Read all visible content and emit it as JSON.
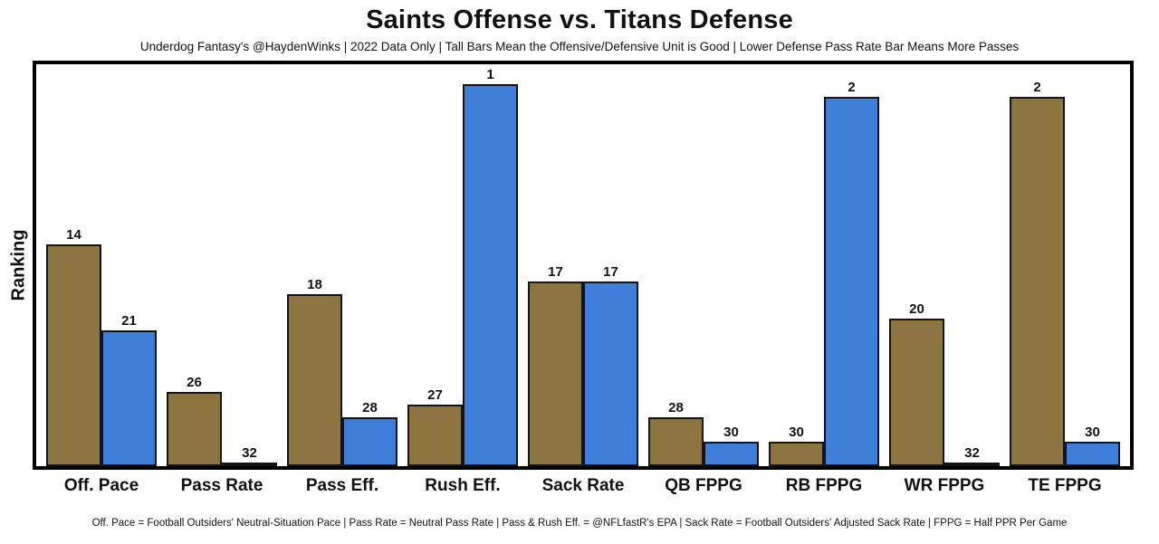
{
  "chart_data": {
    "type": "bar",
    "title": "Saints Offense vs. Titans Defense",
    "subtitle": "Underdog Fantasy's @HaydenWinks | 2022 Data Only | Tall Bars Mean the Offensive/Defensive Unit is Good | Lower Defense Pass Rate Bar Means More Passes",
    "ylabel": "Ranking",
    "footer": "Off. Pace = Football Outsiders' Neutral-Situation Pace | Pass Rate = Neutral Pass Rate | Pass & Rush Eff. = @NFLfastR's EPA | Sack Rate = Football Outsiders' Adjusted Sack Rate | FPPG = Half PPR Per Game",
    "categories": [
      "Off. Pace",
      "Pass Rate",
      "Pass Eff.",
      "Rush Eff.",
      "Sack Rate",
      "QB FPPG",
      "RB FPPG",
      "WR FPPG",
      "TE FPPG"
    ],
    "series": [
      {
        "name": "Saints Offense",
        "color": "#8c7340",
        "values": [
          14,
          26,
          18,
          27,
          17,
          28,
          30,
          20,
          2
        ]
      },
      {
        "name": "Titans Defense",
        "color": "#3e7ed8",
        "values": [
          21,
          32,
          28,
          1,
          17,
          30,
          2,
          32,
          30
        ]
      }
    ],
    "rank_scale": {
      "best": 1,
      "worst": 32
    },
    "layout": {
      "grid": false,
      "legend": "none",
      "bar_labels": "rank above bar, taller bar = better rank"
    }
  }
}
